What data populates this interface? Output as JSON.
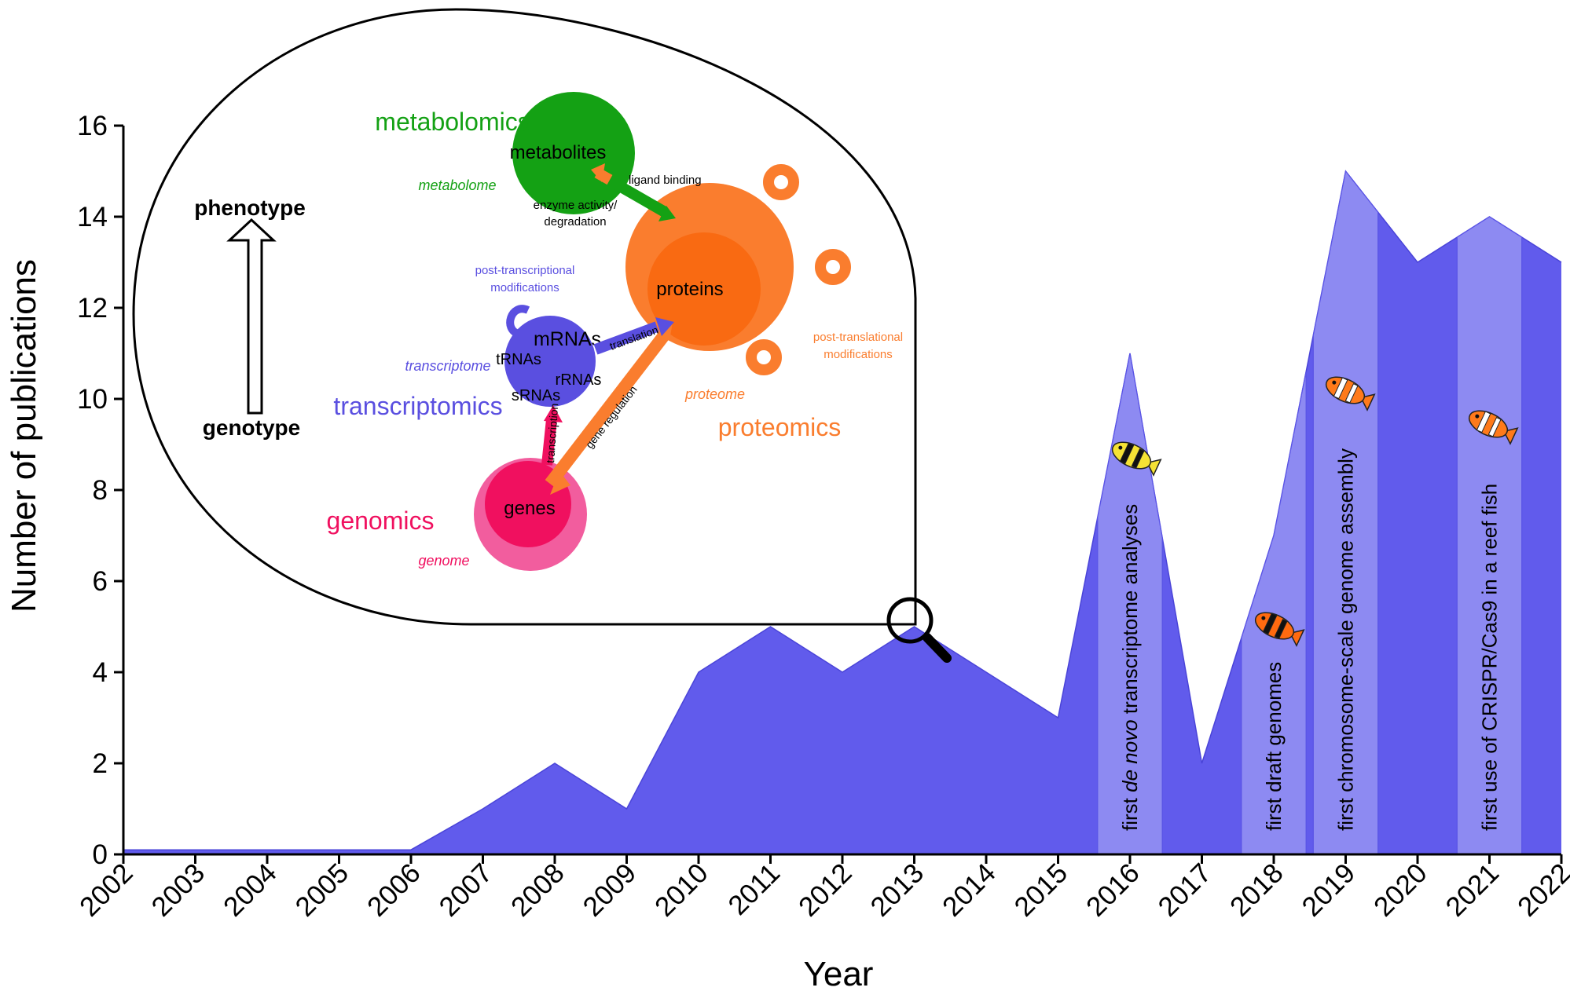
{
  "colors": {
    "area": "#615BEC",
    "highlight": "#8D8AF2",
    "genomics": "#F0105F",
    "genomics_light": "#F25D9E",
    "transcriptomics": "#5A4FE0",
    "proteomics": "#FA7D2E",
    "proteomics_dark": "#F96A12",
    "metabolomics": "#14A114"
  },
  "chart_data": {
    "type": "area",
    "xlabel": "Year",
    "ylabel": "Number of publications",
    "ylim": [
      0,
      16
    ],
    "xlim": [
      2002,
      2022
    ],
    "yticks": [
      0,
      2,
      4,
      6,
      8,
      10,
      12,
      14,
      16
    ],
    "x": [
      2002,
      2003,
      2004,
      2005,
      2006,
      2007,
      2008,
      2009,
      2010,
      2011,
      2012,
      2013,
      2014,
      2015,
      2016,
      2017,
      2018,
      2019,
      2020,
      2021,
      2022
    ],
    "x_tick_labels": [
      "2002",
      "2003",
      "2004",
      "2005",
      "2006",
      "2007",
      "2008",
      "2009",
      "2010",
      "2011",
      "2012",
      "2013",
      "2014",
      "2015",
      "2016",
      "2017",
      "2018",
      "2019",
      "2020",
      "2021",
      "2022"
    ],
    "values": [
      0.1,
      0.1,
      0.1,
      0.1,
      0.1,
      1,
      2,
      1,
      4,
      5,
      4,
      5,
      4,
      3,
      11,
      2,
      7,
      15,
      13,
      14,
      13
    ],
    "grid": false,
    "annotations": [
      {
        "year": 2016,
        "pre": "first ",
        "italic": "de novo",
        "post": " transcriptome analyses",
        "fish": "yellow"
      },
      {
        "year": 2018,
        "pre": "first draft genomes",
        "italic": "",
        "post": "",
        "fish": "cinnamon"
      },
      {
        "year": 2019,
        "pre": "first chromosome-scale genome assembly",
        "italic": "",
        "post": "",
        "fish": "clown"
      },
      {
        "year": 2021,
        "pre": "first use of CRISPR/Cas9 in a reef fish",
        "italic": "",
        "post": "",
        "fish": "clown"
      }
    ],
    "magnified_year": 2013
  },
  "inset": {
    "phenotype": "phenotype",
    "genotype": "genotype",
    "genomics": "genomics",
    "genome": "genome",
    "genes": "genes",
    "transcriptomics": "transcriptomics",
    "transcriptome": "transcriptome",
    "mrnas": "mRNAs",
    "trnas": "tRNAs",
    "rrnas": "rRNAs",
    "srnas": "sRNAs",
    "ptm_line1": "post-transcriptional",
    "ptm_line2": "modifications",
    "proteomics": "proteomics",
    "proteome": "proteome",
    "proteins": "proteins",
    "ptl_line1": "post-translational",
    "ptl_line2": "modifications",
    "metabolomics": "metabolomics",
    "metabolome": "metabolome",
    "metabolites": "metabolites",
    "transcription": "transcription",
    "translation": "translation",
    "gene_regulation": "gene regulation",
    "ligand_binding": "ligand binding",
    "enzyme_line1": "enzyme activity/",
    "enzyme_line2": "degradation"
  }
}
